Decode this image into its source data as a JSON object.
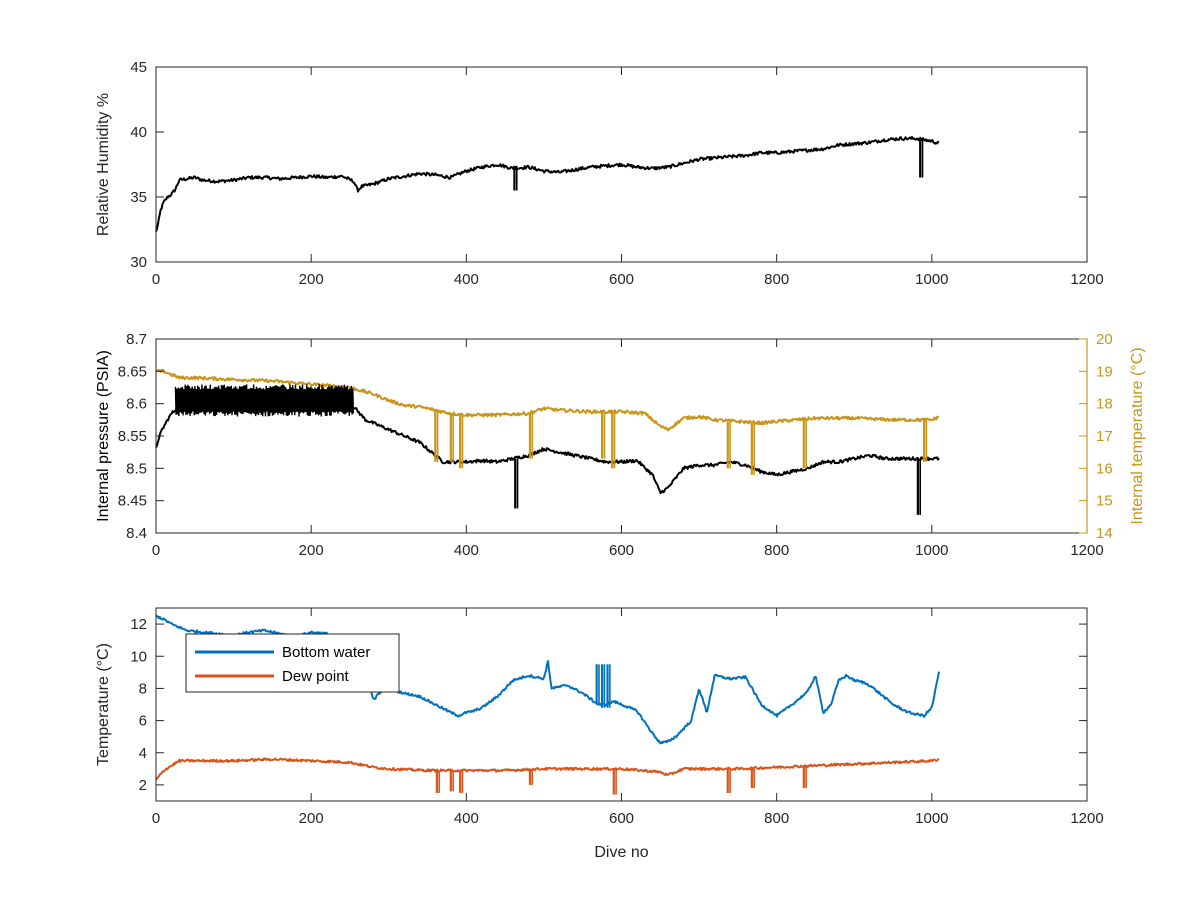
{
  "chart_data": [
    {
      "type": "line",
      "xlabel": "",
      "ylabel": "Relative Humidity %",
      "xlim": [
        0,
        1200
      ],
      "ylim": [
        30,
        45
      ],
      "xticks": [
        0,
        200,
        400,
        600,
        800,
        1000,
        1200
      ],
      "yticks": [
        30,
        35,
        40,
        45
      ],
      "series": [
        {
          "color": "#000000",
          "x": [
            0,
            3,
            6,
            10,
            15,
            20,
            25,
            30,
            40,
            50,
            60,
            80,
            100,
            120,
            140,
            160,
            180,
            200,
            220,
            240,
            255,
            260,
            265,
            280,
            300,
            320,
            340,
            360,
            380,
            400,
            420,
            440,
            460,
            480,
            500,
            520,
            540,
            560,
            580,
            600,
            620,
            640,
            660,
            680,
            700,
            720,
            740,
            760,
            780,
            800,
            820,
            840,
            860,
            880,
            900,
            920,
            940,
            960,
            980,
            1000,
            1010
          ],
          "y": [
            32.3,
            33.0,
            34.0,
            34.6,
            35.0,
            35.2,
            35.6,
            36.3,
            36.4,
            36.5,
            36.3,
            36.2,
            36.3,
            36.5,
            36.5,
            36.4,
            36.5,
            36.6,
            36.5,
            36.6,
            36.2,
            35.5,
            35.8,
            36.0,
            36.4,
            36.6,
            36.8,
            36.7,
            36.5,
            37.0,
            37.3,
            37.5,
            37.2,
            37.3,
            37.0,
            36.9,
            37.1,
            37.3,
            37.4,
            37.5,
            37.3,
            37.2,
            37.3,
            37.6,
            37.9,
            38.0,
            38.1,
            38.2,
            38.4,
            38.4,
            38.5,
            38.6,
            38.7,
            39.0,
            39.1,
            39.2,
            39.4,
            39.5,
            39.5,
            39.3,
            39.1
          ]
        }
      ],
      "spikes": [
        {
          "x": 462,
          "y1": 37.4,
          "y2": 35.5
        },
        {
          "x": 985,
          "y1": 39.4,
          "y2": 36.5
        }
      ]
    },
    {
      "type": "line",
      "xlabel": "",
      "ylabel": "Internal pressure (PSIA)",
      "y2label": "Internal temperature (°C)",
      "xlim": [
        0,
        1200
      ],
      "ylim": [
        8.4,
        8.7
      ],
      "y2lim": [
        14,
        20
      ],
      "xticks": [
        0,
        200,
        400,
        600,
        800,
        1000,
        1200
      ],
      "yticks": [
        8.4,
        8.45,
        8.5,
        8.55,
        8.6,
        8.65,
        8.7
      ],
      "y2ticks": [
        14,
        15,
        16,
        17,
        18,
        19,
        20
      ],
      "series": [
        {
          "axis": "left",
          "color": "#000000",
          "x": [
            0,
            3,
            8,
            15,
            20,
            25,
            30,
            50,
            100,
            150,
            200,
            240,
            255,
            270,
            300,
            320,
            340,
            360,
            370,
            380,
            400,
            420,
            440,
            460,
            480,
            500,
            520,
            540,
            560,
            580,
            600,
            620,
            640,
            650,
            660,
            680,
            700,
            720,
            740,
            760,
            780,
            800,
            820,
            840,
            860,
            880,
            900,
            920,
            940,
            960,
            980,
            1000,
            1010
          ],
          "y": [
            8.53,
            8.545,
            8.56,
            8.575,
            8.585,
            8.59,
            8.61,
            8.61,
            8.61,
            8.61,
            8.612,
            8.612,
            8.595,
            8.575,
            8.56,
            8.55,
            8.54,
            8.52,
            8.51,
            8.51,
            8.51,
            8.512,
            8.51,
            8.515,
            8.52,
            8.53,
            8.525,
            8.52,
            8.515,
            8.51,
            8.51,
            8.512,
            8.49,
            8.462,
            8.47,
            8.5,
            8.505,
            8.505,
            8.51,
            8.505,
            8.495,
            8.49,
            8.495,
            8.5,
            8.51,
            8.51,
            8.515,
            8.52,
            8.515,
            8.515,
            8.515,
            8.515,
            8.515
          ]
        },
        {
          "axis": "right",
          "color": "#C8951A",
          "x": [
            0,
            10,
            20,
            30,
            50,
            100,
            150,
            200,
            250,
            280,
            300,
            320,
            340,
            360,
            380,
            400,
            440,
            480,
            500,
            520,
            560,
            600,
            630,
            650,
            660,
            680,
            700,
            720,
            750,
            780,
            800,
            850,
            900,
            950,
            1000,
            1010
          ],
          "y": [
            19.0,
            19.0,
            18.9,
            18.8,
            18.8,
            18.75,
            18.7,
            18.6,
            18.5,
            18.3,
            18.1,
            17.95,
            17.9,
            17.8,
            17.7,
            17.65,
            17.65,
            17.7,
            17.85,
            17.8,
            17.75,
            17.75,
            17.7,
            17.3,
            17.2,
            17.55,
            17.6,
            17.5,
            17.45,
            17.4,
            17.45,
            17.55,
            17.55,
            17.5,
            17.5,
            17.6
          ]
        }
      ],
      "spikes": [
        {
          "axis": "left",
          "x": 463,
          "y1": 8.515,
          "y2": 8.438
        },
        {
          "axis": "left",
          "x": 982,
          "y1": 8.515,
          "y2": 8.428
        },
        {
          "axis": "right",
          "x": 360,
          "y1": 17.8,
          "y2": 16.2
        },
        {
          "axis": "right",
          "x": 380,
          "y1": 17.7,
          "y2": 16.2
        },
        {
          "axis": "right",
          "x": 392,
          "y1": 17.7,
          "y2": 16.0
        },
        {
          "axis": "right",
          "x": 482,
          "y1": 17.7,
          "y2": 16.3
        },
        {
          "axis": "right",
          "x": 575,
          "y1": 17.75,
          "y2": 16.3
        },
        {
          "axis": "right",
          "x": 588,
          "y1": 17.75,
          "y2": 16.0
        },
        {
          "axis": "right",
          "x": 737,
          "y1": 17.45,
          "y2": 16.0
        },
        {
          "axis": "right",
          "x": 768,
          "y1": 17.4,
          "y2": 15.8
        },
        {
          "axis": "right",
          "x": 835,
          "y1": 17.5,
          "y2": 16.0
        },
        {
          "axis": "right",
          "x": 990,
          "y1": 17.5,
          "y2": 16.2
        }
      ],
      "noise_band": {
        "axis": "left",
        "x_from": 25,
        "x_to": 255,
        "y_low": 8.58,
        "y_high": 8.63
      }
    },
    {
      "type": "line",
      "xlabel": "Dive no",
      "ylabel": "Temperature (°C)",
      "xlim": [
        0,
        1200
      ],
      "ylim": [
        1,
        13
      ],
      "xticks": [
        0,
        200,
        400,
        600,
        800,
        1000,
        1200
      ],
      "yticks": [
        2,
        4,
        6,
        8,
        10,
        12
      ],
      "legend": {
        "location": "top-left",
        "entries": [
          {
            "label": "Bottom water",
            "color": "#0072BD"
          },
          {
            "label": "Dew point",
            "color": "#D95319"
          }
        ]
      },
      "series": [
        {
          "name": "Bottom water",
          "color": "#0072BD",
          "x": [
            0,
            10,
            20,
            30,
            40,
            60,
            80,
            100,
            120,
            140,
            160,
            180,
            200,
            220,
            240,
            255,
            270,
            280,
            290,
            300,
            320,
            340,
            360,
            380,
            390,
            400,
            410,
            420,
            440,
            460,
            480,
            500,
            505,
            510,
            530,
            550,
            570,
            580,
            590,
            600,
            620,
            640,
            650,
            660,
            670,
            690,
            700,
            710,
            720,
            740,
            760,
            780,
            800,
            820,
            840,
            850,
            860,
            870,
            880,
            890,
            900,
            910,
            920,
            930,
            950,
            970,
            990,
            1000,
            1010
          ],
          "y": [
            12.5,
            12.3,
            12.0,
            11.8,
            11.6,
            11.5,
            11.4,
            11.3,
            11.5,
            11.6,
            11.4,
            11.2,
            11.5,
            11.4,
            11.0,
            10.3,
            9.3,
            7.3,
            7.8,
            8.0,
            7.7,
            7.5,
            7.0,
            6.5,
            6.3,
            6.5,
            6.6,
            6.8,
            7.5,
            8.5,
            8.8,
            8.6,
            9.7,
            8.0,
            8.2,
            7.7,
            7.0,
            7.0,
            7.2,
            7.0,
            6.6,
            5.2,
            4.6,
            4.7,
            5.0,
            6.0,
            8.0,
            6.5,
            8.8,
            8.6,
            8.7,
            7.0,
            6.3,
            7.0,
            7.8,
            8.8,
            6.5,
            7.0,
            8.5,
            8.8,
            8.5,
            8.4,
            8.2,
            7.8,
            7.0,
            6.5,
            6.3,
            6.8,
            9.2
          ]
        },
        {
          "name": "Dew point",
          "color": "#D95319",
          "x": [
            0,
            5,
            10,
            20,
            30,
            50,
            100,
            150,
            200,
            250,
            280,
            300,
            350,
            400,
            450,
            500,
            550,
            600,
            650,
            660,
            680,
            700,
            750,
            800,
            850,
            900,
            950,
            1000,
            1010
          ],
          "y": [
            2.3,
            2.6,
            2.9,
            3.2,
            3.5,
            3.5,
            3.5,
            3.6,
            3.5,
            3.4,
            3.1,
            3.0,
            2.9,
            2.9,
            2.9,
            3.0,
            3.0,
            3.0,
            2.8,
            2.6,
            3.0,
            3.0,
            3.0,
            3.1,
            3.2,
            3.3,
            3.4,
            3.5,
            3.6
          ]
        }
      ],
      "spikes": [
        {
          "series": 1,
          "x": 362,
          "y1": 2.9,
          "y2": 1.5
        },
        {
          "series": 1,
          "x": 380,
          "y1": 2.9,
          "y2": 1.6
        },
        {
          "series": 1,
          "x": 392,
          "y1": 2.9,
          "y2": 1.5
        },
        {
          "series": 1,
          "x": 482,
          "y1": 3.0,
          "y2": 2.0
        },
        {
          "series": 1,
          "x": 590,
          "y1": 3.0,
          "y2": 1.4
        },
        {
          "series": 1,
          "x": 737,
          "y1": 3.0,
          "y2": 1.5
        },
        {
          "series": 1,
          "x": 768,
          "y1": 3.0,
          "y2": 1.8
        },
        {
          "series": 1,
          "x": 835,
          "y1": 3.2,
          "y2": 1.8
        },
        {
          "series": 0,
          "x": 568,
          "y1": 7.0,
          "y2": 9.5
        },
        {
          "series": 0,
          "x": 575,
          "y1": 9.5,
          "y2": 6.8
        },
        {
          "series": 0,
          "x": 582,
          "y1": 6.8,
          "y2": 9.5
        }
      ]
    }
  ]
}
